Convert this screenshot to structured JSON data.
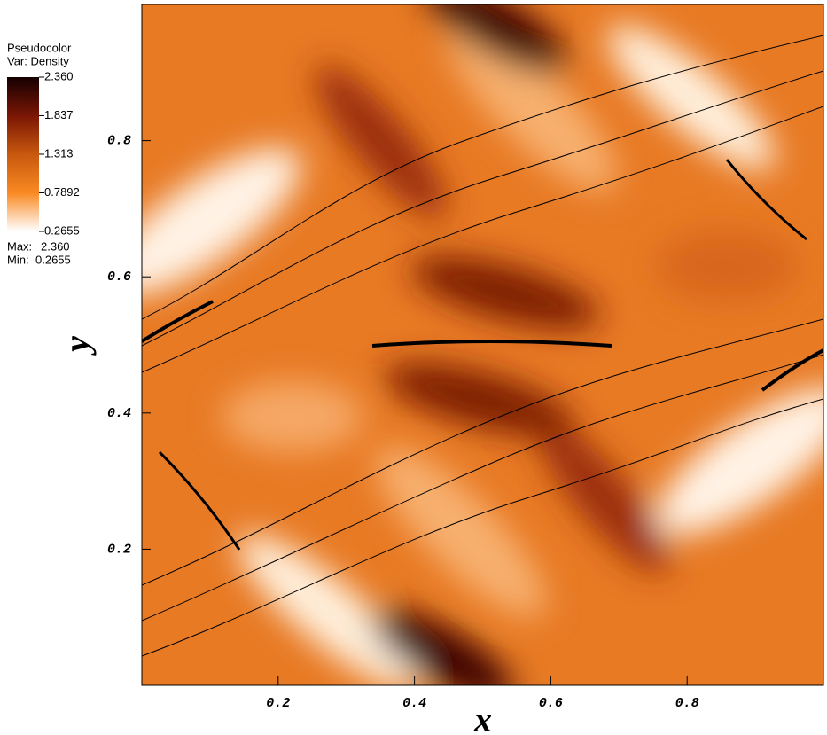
{
  "chart_data": {
    "type": "pseudocolor",
    "legend_title": "Pseudocolor",
    "variable_label": "Var: Density",
    "colorbar_ticks": [
      {
        "value": 2.36,
        "label": "2.360"
      },
      1.837,
      1.313,
      0.7892,
      0.2655
    ],
    "colorbar_lim": [
      0.2655,
      2.36
    ],
    "colors": [
      "#ffffff",
      "#f98a22",
      "#c8580e",
      "#7a1605",
      "#140000"
    ],
    "max_prefix": "Max:",
    "max": {
      "value": 2.36,
      "label": "2.360"
    },
    "min_prefix": "Min:",
    "min": 0.2655,
    "xlabel": "x",
    "ylabel": "y",
    "xlim": [
      0,
      1
    ],
    "ylim": [
      0,
      1
    ],
    "xticks": [
      0.2,
      0.4,
      0.6,
      0.8
    ],
    "yticks": [
      0.2,
      0.4,
      0.6,
      0.8
    ]
  }
}
